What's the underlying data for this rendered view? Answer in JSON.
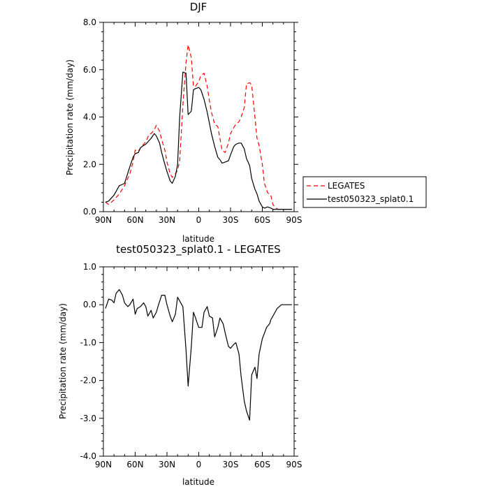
{
  "chart_data": [
    {
      "type": "line",
      "title": "DJF",
      "xlabel": "latitude",
      "ylabel": "Precipitation rate (mm/day)",
      "xlim": [
        90,
        -90
      ],
      "ylim": [
        0,
        8
      ],
      "x_ticks": [
        90,
        60,
        30,
        0,
        -30,
        -60,
        -90
      ],
      "x_tick_labels": [
        "90N",
        "60N",
        "30N",
        "0",
        "30S",
        "60S",
        "90S"
      ],
      "y_ticks": [
        0,
        2,
        4,
        6,
        8
      ],
      "y_tick_labels": [
        "0.0",
        "2.0",
        "4.0",
        "6.0",
        "8.0"
      ],
      "legend_position": "right",
      "series": [
        {
          "name": "LEGATES",
          "color": "#ff0000",
          "dash": "dashed",
          "x": [
            88,
            85,
            80,
            75,
            70,
            65,
            62,
            60,
            57,
            55,
            52,
            50,
            47,
            45,
            42,
            40,
            37,
            35,
            32,
            30,
            27,
            25,
            22,
            20,
            18,
            15,
            12,
            10,
            7,
            5,
            3,
            0,
            -2,
            -5,
            -8,
            -10,
            -12,
            -15,
            -18,
            -20,
            -22,
            -25,
            -28,
            -30,
            -33,
            -35,
            -38,
            -40,
            -43,
            -45,
            -48,
            -50,
            -53,
            -55,
            -57,
            -60,
            -62,
            -65,
            -68,
            -70,
            -73,
            -75,
            -78,
            -80,
            -83,
            -85,
            -88
          ],
          "y": [
            0.4,
            0.3,
            0.5,
            0.75,
            1.1,
            1.6,
            2.1,
            2.6,
            2.55,
            2.7,
            2.85,
            2.95,
            3.25,
            3.3,
            3.45,
            3.65,
            3.4,
            3.05,
            2.6,
            2.1,
            1.6,
            1.45,
            1.6,
            1.75,
            2.15,
            4.5,
            6.3,
            7.05,
            6.5,
            5.3,
            5.3,
            5.5,
            5.75,
            5.85,
            5.3,
            4.7,
            4.2,
            3.7,
            3.6,
            3.1,
            2.6,
            2.5,
            2.9,
            3.3,
            3.55,
            3.7,
            3.8,
            4.0,
            4.4,
            5.4,
            5.45,
            5.35,
            4.0,
            3.1,
            2.8,
            2.0,
            1.2,
            0.8,
            0.7,
            0.3,
            0.15,
            0.1,
            0.1,
            0.1,
            0.1,
            0.1,
            0.1
          ]
        },
        {
          "name": "test050323_splat0.1",
          "color": "#000000",
          "dash": "solid",
          "x": [
            88,
            85,
            80,
            75,
            72,
            70,
            65,
            62,
            60,
            57,
            55,
            52,
            50,
            47,
            45,
            42,
            40,
            37,
            35,
            32,
            30,
            27,
            25,
            22,
            20,
            18,
            15,
            12,
            10,
            7,
            5,
            3,
            0,
            -2,
            -5,
            -8,
            -10,
            -12,
            -15,
            -18,
            -20,
            -22,
            -25,
            -28,
            -30,
            -33,
            -35,
            -38,
            -40,
            -43,
            -45,
            -48,
            -50,
            -53,
            -55,
            -57,
            -60,
            -62,
            -65,
            -68,
            -70,
            -73,
            -75,
            -78,
            -80,
            -83,
            -85,
            -88
          ],
          "y": [
            0.4,
            0.45,
            0.7,
            1.1,
            1.15,
            1.2,
            1.9,
            2.3,
            2.45,
            2.5,
            2.7,
            2.8,
            2.85,
            3.0,
            3.1,
            3.3,
            3.2,
            2.9,
            2.5,
            2.0,
            1.7,
            1.3,
            1.2,
            1.5,
            2.0,
            4.0,
            5.9,
            5.85,
            4.1,
            4.25,
            5.15,
            5.2,
            5.25,
            5.15,
            4.75,
            4.2,
            3.75,
            3.3,
            2.75,
            2.3,
            2.2,
            2.05,
            2.1,
            2.15,
            2.4,
            2.75,
            2.85,
            2.9,
            2.9,
            2.65,
            2.25,
            1.95,
            1.4,
            0.95,
            0.75,
            0.45,
            0.2,
            0.15,
            0.2,
            0.15,
            0.1,
            0.1,
            0.1,
            0.1,
            0.1,
            0.1,
            0.1,
            0.1
          ]
        }
      ]
    },
    {
      "type": "line",
      "title": "test050323_splat0.1 - LEGATES",
      "xlabel": "latitude",
      "ylabel": "Precipitation rate (mm/day)",
      "xlim": [
        90,
        -90
      ],
      "ylim": [
        -4,
        1
      ],
      "x_ticks": [
        90,
        60,
        30,
        0,
        -30,
        -60,
        -90
      ],
      "x_tick_labels": [
        "90N",
        "60N",
        "30N",
        "0",
        "30S",
        "60S",
        "90S"
      ],
      "y_ticks": [
        -4,
        -3,
        -2,
        -1,
        0,
        1
      ],
      "y_tick_labels": [
        "-4.0",
        "-3.0",
        "-2.0",
        "-1.0",
        "0.0",
        "1.0"
      ],
      "series": [
        {
          "color": "#000000",
          "dash": "solid",
          "x": [
            88,
            85,
            82,
            80,
            78,
            75,
            72,
            70,
            67,
            65,
            62,
            60,
            58,
            55,
            52,
            50,
            48,
            45,
            43,
            40,
            38,
            35,
            32,
            30,
            27,
            25,
            22,
            20,
            18,
            15,
            12,
            10,
            7,
            5,
            3,
            0,
            -3,
            -5,
            -8,
            -10,
            -13,
            -15,
            -18,
            -20,
            -23,
            -25,
            -28,
            -30,
            -33,
            -35,
            -38,
            -40,
            -43,
            -45,
            -48,
            -50,
            -53,
            -55,
            -57,
            -60,
            -62,
            -64,
            -67,
            -68,
            -70,
            -72,
            -74,
            -76,
            -78,
            -80,
            -82,
            -85,
            -88
          ],
          "y": [
            -0.1,
            0.15,
            0.12,
            0.05,
            0.3,
            0.4,
            0.25,
            0.05,
            -0.05,
            0.0,
            0.15,
            -0.25,
            -0.1,
            -0.05,
            0.05,
            -0.05,
            -0.3,
            -0.15,
            -0.35,
            -0.2,
            0.0,
            0.25,
            0.25,
            0.0,
            -0.3,
            -0.45,
            -0.25,
            0.2,
            0.1,
            -0.05,
            -1.2,
            -2.15,
            -1.1,
            -0.2,
            -0.35,
            -0.6,
            -0.6,
            -0.2,
            -0.05,
            -0.3,
            -0.35,
            -0.85,
            -0.6,
            -0.35,
            -0.5,
            -0.75,
            -1.1,
            -1.15,
            -1.05,
            -1.0,
            -1.3,
            -1.9,
            -2.55,
            -2.8,
            -3.05,
            -1.85,
            -1.65,
            -1.95,
            -1.3,
            -0.9,
            -0.75,
            -0.6,
            -0.5,
            -0.4,
            -0.3,
            -0.2,
            -0.1,
            -0.05,
            0.0,
            0.0,
            0.0,
            0.0,
            0.0
          ]
        }
      ]
    }
  ]
}
